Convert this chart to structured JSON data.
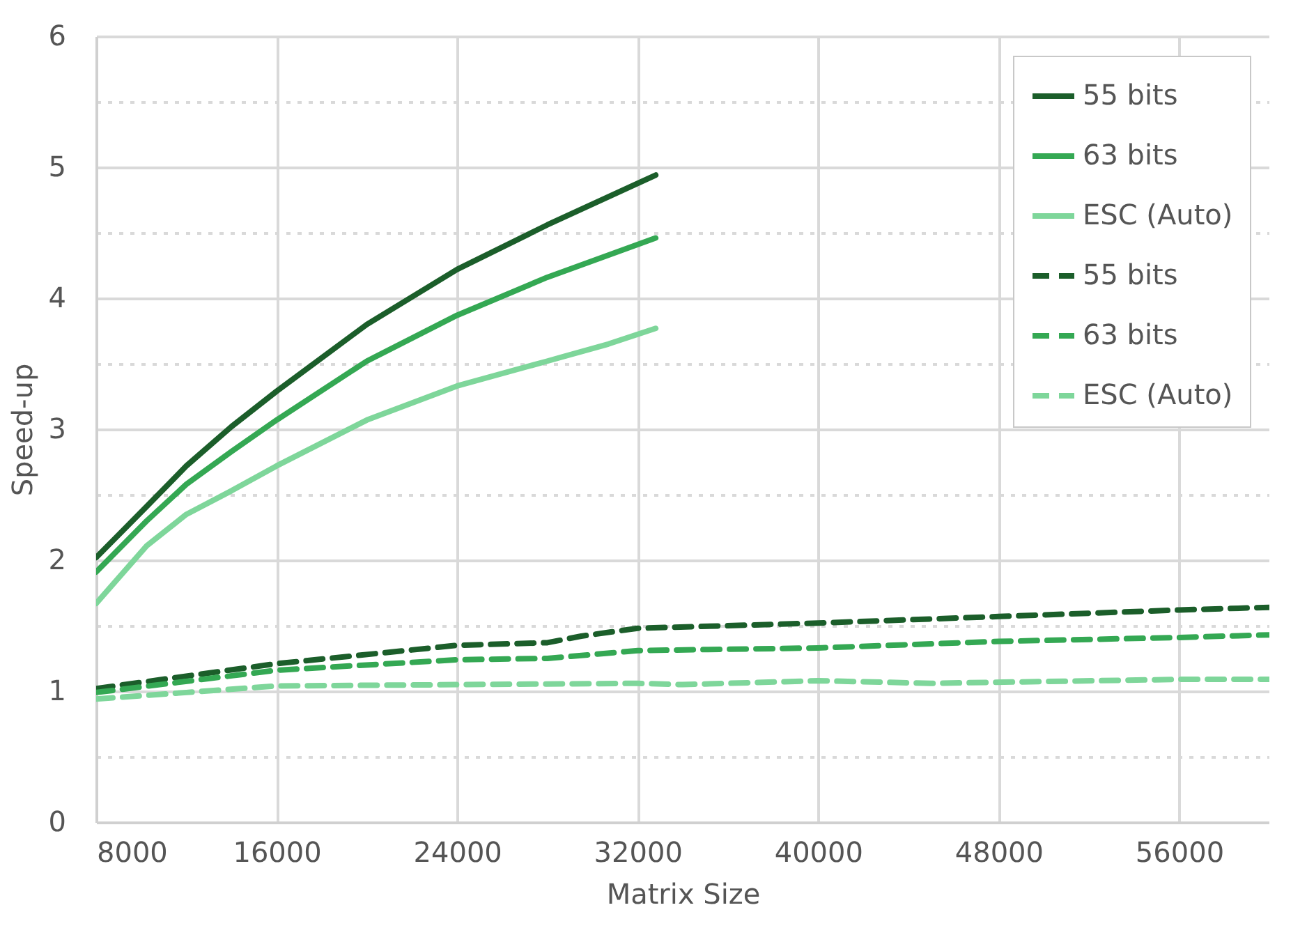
{
  "chart_data": {
    "type": "line",
    "xlabel": "Matrix Size",
    "ylabel": "Speed-up",
    "xlim": [
      8000,
      60000
    ],
    "xticks": [
      8000,
      16000,
      24000,
      32000,
      40000,
      48000,
      56000
    ],
    "ylim": [
      0,
      6
    ],
    "yticks": [
      0,
      {
        "value": 0.5,
        "label": null
      },
      1,
      {
        "value": 1.5,
        "label": null
      },
      2,
      {
        "value": 2.5,
        "label": null
      },
      3,
      {
        "value": 3.5,
        "label": null
      },
      4,
      {
        "value": 4.5,
        "label": null
      },
      5,
      {
        "value": 5.5,
        "label": null
      },
      6
    ],
    "grid": true,
    "legend": "top right",
    "series": [
      {
        "name": "55 bits",
        "color": "#1b5e2a",
        "line_style": "solid",
        "x": [
          8000,
          10240,
          12000,
          14000,
          16000,
          20000,
          24000,
          28000,
          32800
        ],
        "values": [
          2.02,
          2.41,
          2.72,
          3.02,
          3.29,
          3.8,
          4.22,
          4.56,
          4.94
        ]
      },
      {
        "name": "63 bits",
        "color": "#34a853",
        "line_style": "solid",
        "x": [
          8000,
          10240,
          12000,
          14000,
          16000,
          20000,
          24000,
          28000,
          32800
        ],
        "values": [
          1.91,
          2.3,
          2.58,
          2.83,
          3.07,
          3.52,
          3.87,
          4.16,
          4.46
        ]
      },
      {
        "name": "ESC (Auto)",
        "color": "#7ed69a",
        "line_style": "solid",
        "x": [
          8000,
          10240,
          12000,
          14000,
          16000,
          20000,
          24000,
          28000,
          30700,
          32800
        ],
        "values": [
          1.67,
          2.11,
          2.35,
          2.53,
          2.72,
          3.07,
          3.33,
          3.52,
          3.65,
          3.77
        ]
      },
      {
        "name": "55 bits",
        "color": "#1b5e2a",
        "line_style": "dashed",
        "x": [
          8000,
          16000,
          24000,
          28000,
          29500,
          32000,
          40000,
          48000,
          56000,
          60000
        ],
        "values": [
          1.02,
          1.21,
          1.35,
          1.37,
          1.42,
          1.48,
          1.52,
          1.57,
          1.62,
          1.64
        ]
      },
      {
        "name": "63 bits",
        "color": "#34a853",
        "line_style": "dashed",
        "x": [
          8000,
          16000,
          24000,
          28000,
          32000,
          40000,
          48000,
          56000,
          60000
        ],
        "values": [
          0.99,
          1.16,
          1.24,
          1.25,
          1.31,
          1.33,
          1.38,
          1.41,
          1.43
        ]
      },
      {
        "name": "ESC (Auto)",
        "color": "#7ed69a",
        "line_style": "dashed",
        "x": [
          8000,
          12000,
          16000,
          24000,
          32000,
          34000,
          40000,
          45000,
          56000,
          60000
        ],
        "values": [
          0.94,
          0.99,
          1.04,
          1.05,
          1.06,
          1.05,
          1.08,
          1.06,
          1.09,
          1.09
        ]
      }
    ]
  }
}
